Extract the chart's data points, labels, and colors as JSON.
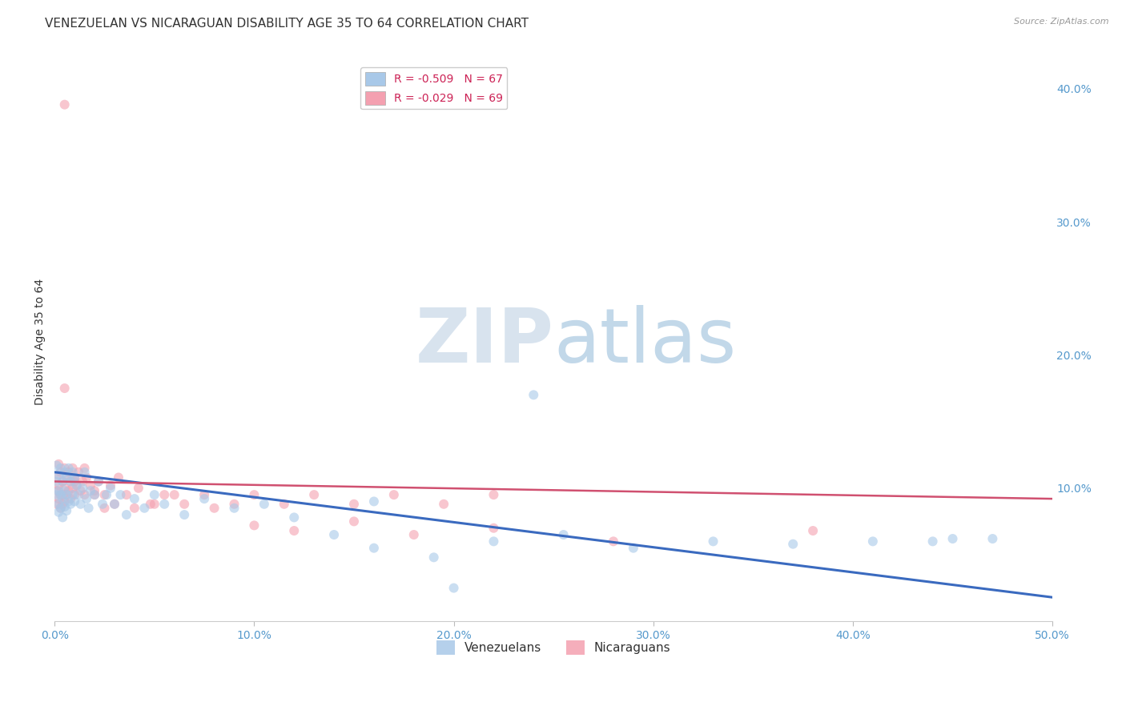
{
  "title": "VENEZUELAN VS NICARAGUAN DISABILITY AGE 35 TO 64 CORRELATION CHART",
  "source": "Source: ZipAtlas.com",
  "ylabel_label": "Disability Age 35 to 64",
  "xlim": [
    0.0,
    0.5
  ],
  "ylim": [
    0.0,
    0.42
  ],
  "xticks": [
    0.0,
    0.1,
    0.2,
    0.3,
    0.4,
    0.5
  ],
  "yticks_right": [
    0.1,
    0.2,
    0.3,
    0.4
  ],
  "legend_entries": [
    {
      "label": "R = -0.509   N = 67",
      "color": "#a8c8e8"
    },
    {
      "label": "R = -0.029   N = 69",
      "color": "#f4a0b0"
    }
  ],
  "venezuelan_x": [
    0.001,
    0.001,
    0.001,
    0.002,
    0.002,
    0.002,
    0.002,
    0.003,
    0.003,
    0.003,
    0.004,
    0.004,
    0.004,
    0.005,
    0.005,
    0.005,
    0.006,
    0.006,
    0.006,
    0.007,
    0.007,
    0.008,
    0.008,
    0.009,
    0.009,
    0.01,
    0.01,
    0.011,
    0.012,
    0.013,
    0.014,
    0.015,
    0.016,
    0.017,
    0.018,
    0.02,
    0.022,
    0.024,
    0.026,
    0.028,
    0.03,
    0.033,
    0.036,
    0.04,
    0.045,
    0.05,
    0.055,
    0.065,
    0.075,
    0.09,
    0.105,
    0.12,
    0.14,
    0.16,
    0.19,
    0.22,
    0.255,
    0.29,
    0.33,
    0.37,
    0.41,
    0.44,
    0.47,
    0.2,
    0.24,
    0.16,
    0.45
  ],
  "venezuelan_y": [
    0.117,
    0.105,
    0.095,
    0.11,
    0.098,
    0.088,
    0.082,
    0.115,
    0.095,
    0.085,
    0.105,
    0.092,
    0.078,
    0.112,
    0.098,
    0.086,
    0.108,
    0.095,
    0.083,
    0.115,
    0.09,
    0.105,
    0.088,
    0.112,
    0.095,
    0.108,
    0.09,
    0.102,
    0.095,
    0.088,
    0.1,
    0.112,
    0.092,
    0.085,
    0.098,
    0.095,
    0.105,
    0.088,
    0.095,
    0.1,
    0.088,
    0.095,
    0.08,
    0.092,
    0.085,
    0.095,
    0.088,
    0.08,
    0.092,
    0.085,
    0.088,
    0.078,
    0.065,
    0.055,
    0.048,
    0.06,
    0.065,
    0.055,
    0.06,
    0.058,
    0.06,
    0.06,
    0.062,
    0.025,
    0.17,
    0.09,
    0.062
  ],
  "nicaraguan_x": [
    0.001,
    0.001,
    0.001,
    0.002,
    0.002,
    0.002,
    0.003,
    0.003,
    0.003,
    0.004,
    0.004,
    0.004,
    0.005,
    0.005,
    0.005,
    0.006,
    0.006,
    0.007,
    0.007,
    0.008,
    0.008,
    0.009,
    0.009,
    0.01,
    0.01,
    0.011,
    0.012,
    0.013,
    0.014,
    0.015,
    0.016,
    0.018,
    0.02,
    0.022,
    0.025,
    0.028,
    0.032,
    0.036,
    0.042,
    0.048,
    0.055,
    0.065,
    0.075,
    0.09,
    0.1,
    0.115,
    0.13,
    0.15,
    0.17,
    0.195,
    0.22,
    0.005,
    0.01,
    0.015,
    0.02,
    0.025,
    0.03,
    0.04,
    0.05,
    0.06,
    0.08,
    0.1,
    0.12,
    0.15,
    0.18,
    0.22,
    0.28,
    0.38,
    0.005
  ],
  "nicaraguan_y": [
    0.108,
    0.098,
    0.088,
    0.118,
    0.102,
    0.092,
    0.112,
    0.095,
    0.085,
    0.105,
    0.095,
    0.088,
    0.115,
    0.1,
    0.09,
    0.108,
    0.095,
    0.112,
    0.098,
    0.105,
    0.092,
    0.115,
    0.1,
    0.108,
    0.095,
    0.102,
    0.112,
    0.098,
    0.105,
    0.095,
    0.108,
    0.102,
    0.098,
    0.105,
    0.095,
    0.102,
    0.108,
    0.095,
    0.1,
    0.088,
    0.095,
    0.088,
    0.095,
    0.088,
    0.095,
    0.088,
    0.095,
    0.088,
    0.095,
    0.088,
    0.095,
    0.175,
    0.105,
    0.115,
    0.095,
    0.085,
    0.088,
    0.085,
    0.088,
    0.095,
    0.085,
    0.072,
    0.068,
    0.075,
    0.065,
    0.07,
    0.06,
    0.068,
    0.388
  ],
  "venezuelan_line_x": [
    0.0,
    0.5
  ],
  "venezuelan_line_y": [
    0.112,
    0.018
  ],
  "nicaraguan_line_x": [
    0.0,
    0.5
  ],
  "nicaraguan_line_y": [
    0.105,
    0.092
  ],
  "venezuelan_color": "#a8c8e8",
  "nicaraguan_color": "#f4a0b0",
  "venezuelan_line_color": "#3a6abf",
  "nicaraguan_line_color": "#d05070",
  "background_color": "#ffffff",
  "grid_color": "#cccccc",
  "title_fontsize": 11,
  "axis_fontsize": 10,
  "tick_color": "#5599cc",
  "scatter_alpha": 0.6,
  "scatter_size": 75
}
